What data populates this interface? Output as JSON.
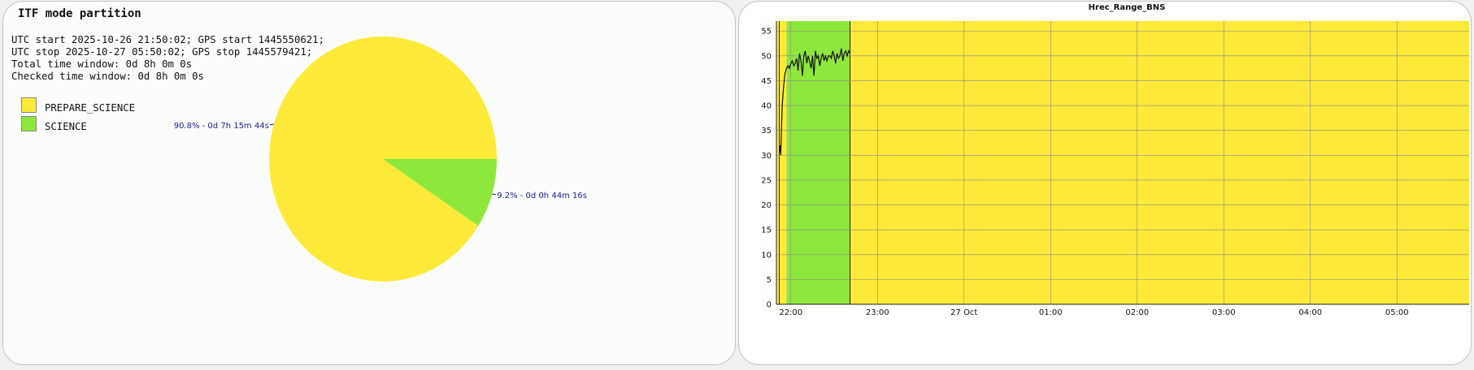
{
  "colors": {
    "prepare_science": "#ffea3a",
    "science": "#8ee83c",
    "slice_label": "#1a1a99"
  },
  "pie_panel": {
    "title": "ITF mode partition",
    "info_lines": [
      "UTC start 2025-10-26 21:50:02; GPS start 1445550621;",
      "UTC stop 2025-10-27 05:50:02; GPS stop 1445579421;",
      "Total time window: 0d 8h 0m 0s",
      "Checked time window: 0d 8h 0m 0s"
    ],
    "legend": [
      "PREPARE_SCIENCE",
      "SCIENCE"
    ]
  },
  "chart_data": [
    {
      "type": "pie",
      "title": "ITF mode partition",
      "slices": [
        {
          "name": "PREPARE_SCIENCE",
          "percent": 90.8,
          "duration": "0d 7h 15m 44s",
          "label": "90.8% - 0d 7h 15m 44s"
        },
        {
          "name": "SCIENCE",
          "percent": 9.2,
          "duration": "0d 0h 44m 16s",
          "label": "9.2% - 0d 0h 44m 16s"
        }
      ]
    },
    {
      "type": "line",
      "title": "Hrec_Range_BNS",
      "x_range": [
        "2025-10-26 21:50",
        "2025-10-27 05:50"
      ],
      "x_ticks": [
        "22:00",
        "23:00",
        "27 Oct",
        "01:00",
        "02:00",
        "03:00",
        "04:00",
        "05:00"
      ],
      "ylim": [
        0,
        57
      ],
      "y_ticks": [
        0,
        5,
        10,
        15,
        20,
        25,
        30,
        35,
        40,
        45,
        50,
        55
      ],
      "grid": true,
      "background_bands": [
        {
          "state": "PREPARE_SCIENCE",
          "start": "21:50",
          "end": "21:57"
        },
        {
          "state": "SCIENCE",
          "start": "21:57",
          "end": "22:41"
        },
        {
          "state": "PREPARE_SCIENCE",
          "start": "22:41",
          "end": "05:50"
        }
      ],
      "series": [
        {
          "time_min": [
            2,
            2.5,
            3,
            3.5,
            4,
            5,
            6,
            7,
            8,
            9,
            10,
            11,
            12,
            13,
            14,
            15,
            16,
            17,
            18,
            19,
            20,
            21,
            22,
            23,
            24,
            25,
            26,
            27,
            28,
            29,
            30,
            31,
            32,
            33,
            34,
            35,
            36,
            37,
            38,
            39,
            40,
            41,
            42,
            43,
            44,
            45,
            46,
            47,
            48,
            49,
            50,
            51
          ],
          "values": [
            30.5,
            32,
            30,
            35,
            40,
            44,
            46.5,
            47.5,
            48,
            47.5,
            48.5,
            49,
            48,
            48.5,
            49.5,
            47,
            50.5,
            49,
            46,
            50,
            51,
            48.5,
            50,
            49,
            47.5,
            50,
            46,
            51,
            49.5,
            50,
            48,
            49.5,
            50.5,
            49,
            50,
            49,
            50,
            50,
            49.5,
            51,
            50,
            48.5,
            50.5,
            49.5,
            50,
            51.5,
            49,
            50.5,
            51,
            50,
            51,
            50.5
          ]
        }
      ]
    }
  ]
}
